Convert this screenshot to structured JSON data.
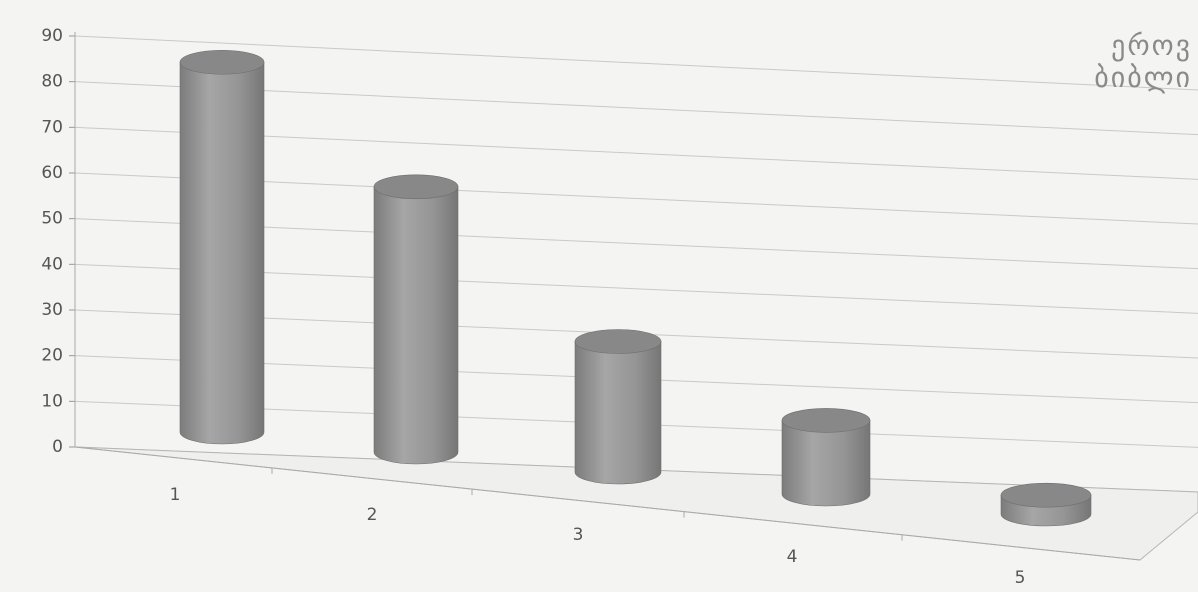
{
  "chart_data": {
    "type": "bar",
    "style": "3d-cylinder",
    "categories": [
      "1",
      "2",
      "3",
      "4",
      "5"
    ],
    "values": [
      85,
      60,
      29,
      16,
      4
    ],
    "y_ticks": [
      0,
      10,
      20,
      30,
      40,
      50,
      60,
      70,
      80,
      90
    ],
    "ylim": [
      0,
      90
    ],
    "title": "",
    "xlabel": "",
    "ylabel": "",
    "grid": true,
    "bar_color": "#8f8f8f",
    "grid_color": "#c9c9c9",
    "text_color": "#555555"
  },
  "logo": {
    "line1": "ეროვ",
    "line2": "ბიბლი"
  }
}
